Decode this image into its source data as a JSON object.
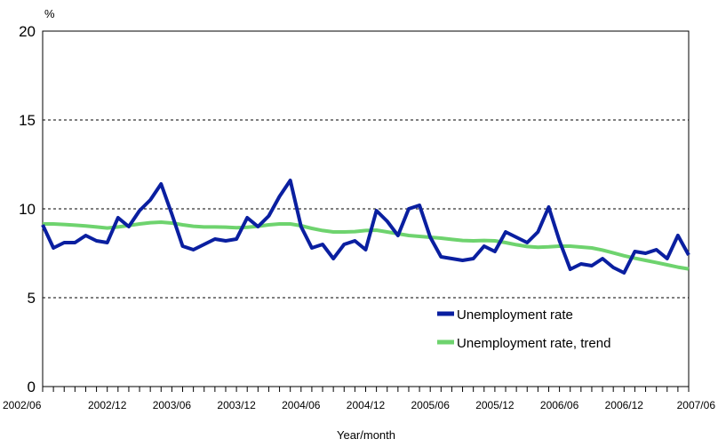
{
  "chart_data": {
    "type": "line",
    "title": "",
    "xlabel": "Year/month",
    "ylabel": "%",
    "ylim": [
      0,
      20
    ],
    "yticks": [
      0,
      5,
      10,
      15,
      20
    ],
    "grid": "horizontal dashed",
    "legend_position": "bottom-right",
    "x": [
      "2002/06",
      "2002/07",
      "2002/08",
      "2002/09",
      "2002/10",
      "2002/11",
      "2002/12",
      "2003/01",
      "2003/02",
      "2003/03",
      "2003/04",
      "2003/05",
      "2003/06",
      "2003/07",
      "2003/08",
      "2003/09",
      "2003/10",
      "2003/11",
      "2003/12",
      "2004/01",
      "2004/02",
      "2004/03",
      "2004/04",
      "2004/05",
      "2004/06",
      "2004/07",
      "2004/08",
      "2004/09",
      "2004/10",
      "2004/11",
      "2004/12",
      "2005/01",
      "2005/02",
      "2005/03",
      "2005/04",
      "2005/05",
      "2005/06",
      "2005/07",
      "2005/08",
      "2005/09",
      "2005/10",
      "2005/11",
      "2005/12",
      "2006/01",
      "2006/02",
      "2006/03",
      "2006/04",
      "2006/05",
      "2006/06",
      "2006/07",
      "2006/08",
      "2006/09",
      "2006/10",
      "2006/11",
      "2006/12",
      "2007/01",
      "2007/02",
      "2007/03",
      "2007/04",
      "2007/05",
      "2007/06"
    ],
    "xtick_labels": [
      "2002/06",
      "2002/12",
      "2003/06",
      "2003/12",
      "2004/06",
      "2004/12",
      "2005/06",
      "2005/12",
      "2006/06",
      "2006/12",
      "2007/06"
    ],
    "series": [
      {
        "name": "Unemployment rate",
        "color": "#0a1fa0",
        "values": [
          9.1,
          7.8,
          8.1,
          8.1,
          8.5,
          8.2,
          8.1,
          9.5,
          9.0,
          9.9,
          10.5,
          11.4,
          9.7,
          7.9,
          7.7,
          8.0,
          8.3,
          8.2,
          8.3,
          9.5,
          9.0,
          9.6,
          10.7,
          11.6,
          9.0,
          7.8,
          8.0,
          7.2,
          8.0,
          8.2,
          7.7,
          9.9,
          9.3,
          8.5,
          10.0,
          10.2,
          8.4,
          7.3,
          7.2,
          7.1,
          7.2,
          7.9,
          7.6,
          8.7,
          8.4,
          8.1,
          8.7,
          10.1,
          8.2,
          6.6,
          6.9,
          6.8,
          7.2,
          6.7,
          6.4,
          7.6,
          7.5,
          7.7,
          7.2,
          8.5,
          7.4
        ]
      },
      {
        "name": "Unemployment rate, trend",
        "color": "#6ed36e",
        "values": [
          9.15,
          9.15,
          9.12,
          9.08,
          9.04,
          8.98,
          8.92,
          8.98,
          9.06,
          9.15,
          9.22,
          9.25,
          9.2,
          9.1,
          9.02,
          8.98,
          8.98,
          8.97,
          8.94,
          8.96,
          9.02,
          9.1,
          9.15,
          9.15,
          9.05,
          8.9,
          8.78,
          8.7,
          8.7,
          8.72,
          8.78,
          8.8,
          8.7,
          8.6,
          8.5,
          8.45,
          8.4,
          8.35,
          8.28,
          8.22,
          8.2,
          8.22,
          8.2,
          8.1,
          7.98,
          7.88,
          7.84,
          7.86,
          7.9,
          7.9,
          7.85,
          7.8,
          7.68,
          7.52,
          7.36,
          7.22,
          7.1,
          6.98,
          6.85,
          6.72,
          6.62
        ]
      }
    ]
  }
}
